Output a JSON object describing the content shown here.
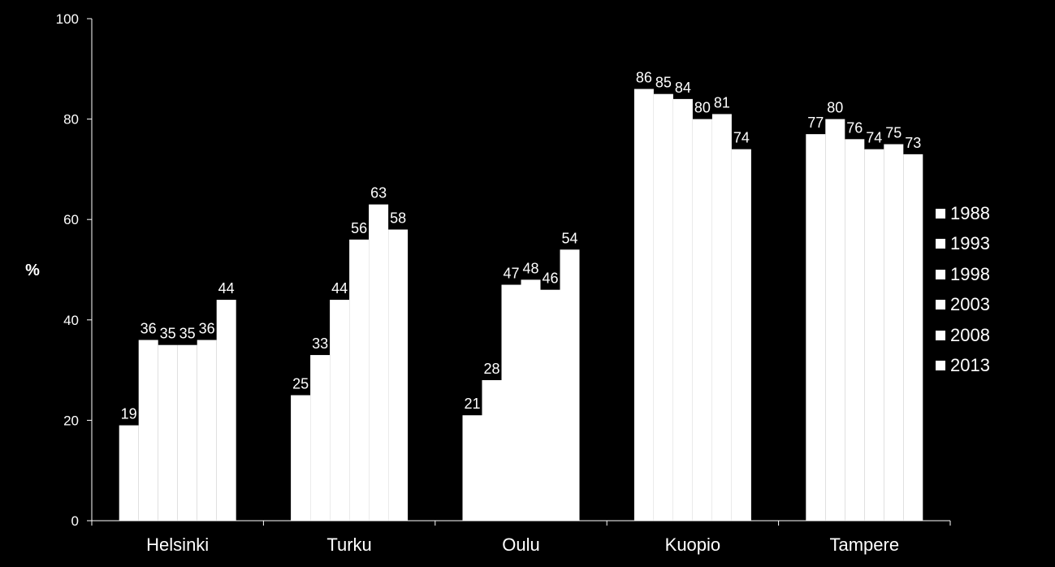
{
  "chart_data": {
    "type": "bar",
    "title": "",
    "xlabel": "",
    "ylabel": "%",
    "ylim": [
      0,
      100
    ],
    "yticks": [
      0,
      20,
      40,
      60,
      80,
      100
    ],
    "grid": false,
    "legend_position": "right",
    "categories": [
      "Helsinki",
      "Turku",
      "Oulu",
      "Kuopio",
      "Tampere"
    ],
    "series": [
      {
        "name": "1988",
        "values": [
          19,
          25,
          21,
          86,
          77
        ]
      },
      {
        "name": "1993",
        "values": [
          36,
          33,
          28,
          85,
          80
        ]
      },
      {
        "name": "1998",
        "values": [
          35,
          44,
          47,
          84,
          76
        ]
      },
      {
        "name": "2003",
        "values": [
          35,
          56,
          48,
          80,
          74
        ]
      },
      {
        "name": "2008",
        "values": [
          36,
          63,
          46,
          81,
          75
        ]
      },
      {
        "name": "2013",
        "values": [
          44,
          58,
          54,
          74,
          73
        ]
      }
    ],
    "colors": {
      "background": "#000000",
      "bars": "#ffffff",
      "text": "#ffffff"
    }
  }
}
